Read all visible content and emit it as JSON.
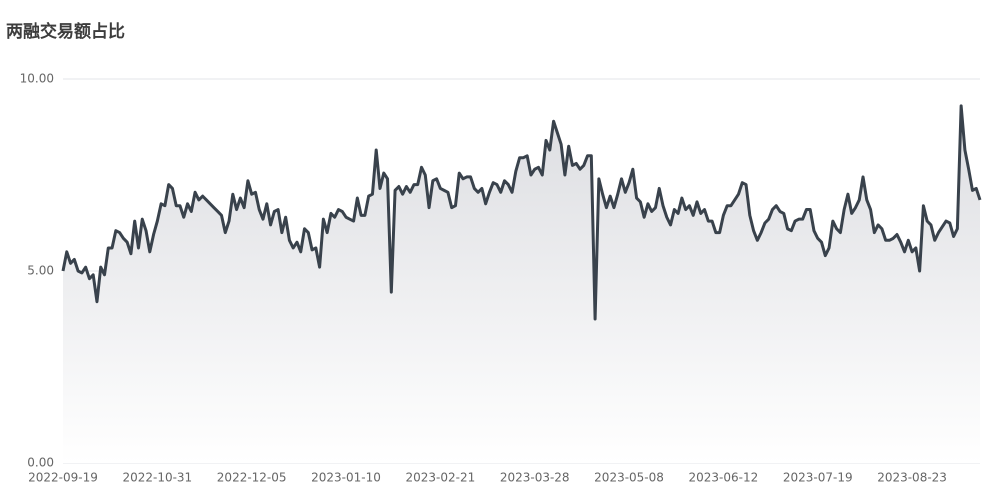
{
  "chart_data": {
    "type": "line",
    "title": "两融交易额占比",
    "color": "#39424c",
    "categories": [
      "2022-09-19",
      null,
      null,
      null,
      null,
      null,
      null,
      null,
      null,
      null,
      null,
      null,
      null,
      null,
      null,
      null,
      null,
      null,
      null,
      null,
      null,
      null,
      null,
      null,
      null,
      "2022-10-31",
      null,
      null,
      null,
      null,
      null,
      null,
      null,
      null,
      null,
      null,
      null,
      null,
      null,
      null,
      null,
      null,
      null,
      null,
      null,
      null,
      null,
      null,
      null,
      null,
      "2022-12-05",
      null,
      null,
      null,
      null,
      null,
      null,
      null,
      null,
      null,
      null,
      null,
      null,
      null,
      null,
      null,
      null,
      null,
      null,
      null,
      null,
      null,
      null,
      null,
      null,
      "2023-01-10",
      null,
      null,
      null,
      null,
      null,
      null,
      null,
      null,
      null,
      null,
      null,
      null,
      null,
      null,
      null,
      null,
      null,
      null,
      null,
      null,
      null,
      null,
      null,
      null,
      "2023-02-21",
      null,
      null,
      null,
      null,
      null,
      null,
      null,
      null,
      null,
      null,
      null,
      null,
      null,
      null,
      null,
      null,
      null,
      null,
      null,
      null,
      null,
      null,
      null,
      null,
      "2023-03-28",
      null,
      null,
      null,
      null,
      null,
      null,
      null,
      null,
      null,
      null,
      null,
      null,
      null,
      null,
      null,
      null,
      null,
      null,
      null,
      null,
      null,
      null,
      null,
      null,
      "2023-05-08",
      null,
      null,
      null,
      null,
      null,
      null,
      null,
      null,
      null,
      null,
      null,
      null,
      null,
      null,
      null,
      null,
      null,
      null,
      null,
      null,
      null,
      null,
      null,
      null,
      "2023-06-12",
      null,
      null,
      null,
      null,
      null,
      null,
      null,
      null,
      null,
      null,
      null,
      null,
      null,
      null,
      null,
      null,
      null,
      null,
      null,
      null,
      null,
      null,
      null,
      null,
      "2023-07-19",
      null,
      null,
      null,
      null,
      null,
      null,
      null,
      null,
      null,
      null,
      null,
      null,
      null,
      null,
      null,
      null,
      null,
      null,
      null,
      null,
      null,
      null,
      null,
      null,
      "2023-08-23",
      null,
      null,
      null,
      null,
      null,
      null,
      null,
      null,
      null,
      null,
      null,
      null,
      null,
      null,
      null,
      null,
      null,
      null
    ],
    "values": [
      5.0,
      5.5,
      5.2,
      5.3,
      5.0,
      4.95,
      5.1,
      4.8,
      4.9,
      4.2,
      5.1,
      4.9,
      5.6,
      5.6,
      6.05,
      6.0,
      5.85,
      5.75,
      5.45,
      6.3,
      5.6,
      6.35,
      6.05,
      5.5,
      5.95,
      6.3,
      6.75,
      6.7,
      7.25,
      7.15,
      6.7,
      6.7,
      6.4,
      6.75,
      6.55,
      7.05,
      6.85,
      6.95,
      6.85,
      6.75,
      6.65,
      6.55,
      6.45,
      6.0,
      6.3,
      7.0,
      6.6,
      6.9,
      6.65,
      7.35,
      7.0,
      7.05,
      6.6,
      6.35,
      6.75,
      6.2,
      6.55,
      6.6,
      6.0,
      6.4,
      5.8,
      5.6,
      5.75,
      5.5,
      6.1,
      6.0,
      5.55,
      5.6,
      5.1,
      6.35,
      6.0,
      6.5,
      6.4,
      6.6,
      6.55,
      6.4,
      6.35,
      6.3,
      6.9,
      6.45,
      6.45,
      6.95,
      7.0,
      8.15,
      7.15,
      7.55,
      7.4,
      4.45,
      7.1,
      7.2,
      7.0,
      7.2,
      7.05,
      7.25,
      7.25,
      7.7,
      7.5,
      6.65,
      7.35,
      7.4,
      7.15,
      7.1,
      7.05,
      6.65,
      6.7,
      7.55,
      7.4,
      7.45,
      7.45,
      7.15,
      7.05,
      7.15,
      6.75,
      7.05,
      7.3,
      7.25,
      7.05,
      7.35,
      7.25,
      7.05,
      7.6,
      7.95,
      7.95,
      8.0,
      7.5,
      7.65,
      7.7,
      7.5,
      8.4,
      8.15,
      8.9,
      8.6,
      8.3,
      7.5,
      8.25,
      7.75,
      7.8,
      7.65,
      7.75,
      8.0,
      8.0,
      3.75,
      7.4,
      7.0,
      6.65,
      6.95,
      6.65,
      7.0,
      7.4,
      7.05,
      7.3,
      7.65,
      6.9,
      6.8,
      6.4,
      6.75,
      6.55,
      6.65,
      7.15,
      6.7,
      6.4,
      6.2,
      6.6,
      6.5,
      6.9,
      6.6,
      6.7,
      6.45,
      6.8,
      6.5,
      6.6,
      6.3,
      6.3,
      6.0,
      6.0,
      6.45,
      6.7,
      6.7,
      6.85,
      7.0,
      7.3,
      7.25,
      6.45,
      6.05,
      5.8,
      6.0,
      6.25,
      6.35,
      6.6,
      6.7,
      6.55,
      6.5,
      6.1,
      6.05,
      6.3,
      6.35,
      6.35,
      6.6,
      6.6,
      6.05,
      5.85,
      5.75,
      5.4,
      5.6,
      6.3,
      6.1,
      6.0,
      6.6,
      7.0,
      6.5,
      6.65,
      6.85,
      7.45,
      6.85,
      6.6,
      6.0,
      6.2,
      6.1,
      5.8,
      5.8,
      5.85,
      5.95,
      5.75,
      5.5,
      5.8,
      5.5,
      5.6,
      5.0,
      6.7,
      6.3,
      6.2,
      5.8,
      6.0,
      6.15,
      6.3,
      6.25,
      5.9,
      6.1,
      9.3,
      8.15,
      7.65,
      7.1,
      7.15,
      6.85
    ],
    "ylim": [
      0,
      10
    ],
    "yticks": [
      {
        "value": 0,
        "label": "0.00"
      },
      {
        "value": 5,
        "label": "5.00"
      },
      {
        "value": 10,
        "label": "10.00"
      }
    ],
    "grid": true
  }
}
